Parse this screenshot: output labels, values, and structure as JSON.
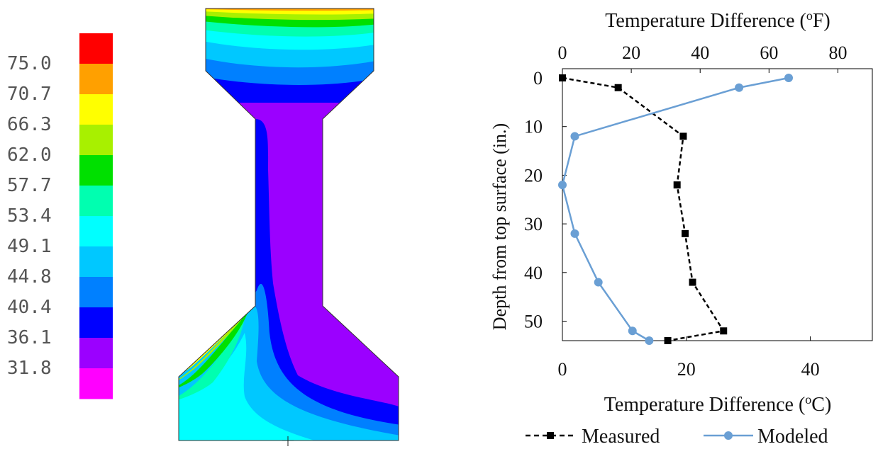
{
  "colorbar": {
    "labels": [
      "75.0",
      "70.7",
      "66.3",
      "62.0",
      "57.7",
      "53.4",
      "49.1",
      "44.8",
      "40.4",
      "36.1",
      "31.8"
    ],
    "colors": [
      "#ff0000",
      "#ffa000",
      "#ffff00",
      "#a8f000",
      "#00e000",
      "#00ffb0",
      "#00ffff",
      "#00c8ff",
      "#0080ff",
      "#0000ff",
      "#9b00ff",
      "#ff00ff"
    ]
  },
  "chart_data": {
    "type": "line",
    "top_axis": {
      "label_prefix": "Temperature Difference (",
      "label_sup": "o",
      "label_suffix": "F)",
      "range": [
        0,
        90
      ],
      "ticks": [
        "0",
        "20",
        "40",
        "60",
        "80"
      ]
    },
    "bottom_axis": {
      "label_prefix": "Temperature Difference (",
      "label_sup": "o",
      "label_suffix": "C)",
      "range": [
        0,
        50
      ],
      "ticks": [
        "0",
        "20",
        "40"
      ]
    },
    "y_axis": {
      "label": "Depth from top surface (in.)",
      "range": [
        0,
        54
      ],
      "inverted": true,
      "ticks": [
        "0",
        "10",
        "20",
        "30",
        "40",
        "50"
      ]
    },
    "series": [
      {
        "name": "Measured",
        "color": "#000000",
        "style": "dashed",
        "marker": "square",
        "x": [
          0,
          9,
          19.5,
          18.5,
          19.8,
          21,
          26,
          17
        ],
        "y": [
          0,
          2,
          12,
          22,
          32,
          42,
          52,
          54
        ]
      },
      {
        "name": "Modeled",
        "color": "#6a9fd4",
        "style": "solid",
        "marker": "circle",
        "x": [
          36.5,
          28.5,
          2,
          0,
          2,
          5.8,
          11.3,
          14
        ],
        "y": [
          0,
          2,
          12,
          22,
          32,
          42,
          52,
          54
        ]
      }
    ],
    "legend": "bottom"
  }
}
